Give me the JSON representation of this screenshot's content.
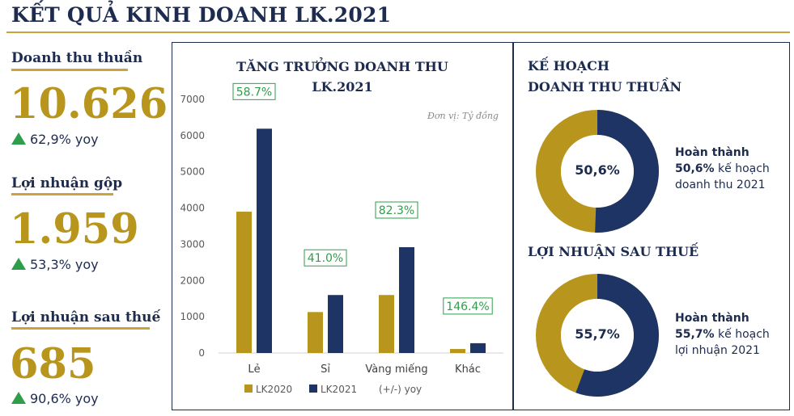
{
  "page": {
    "title": "KẾT QUẢ KINH DOANH LK.2021"
  },
  "colors": {
    "gold": "#b8951c",
    "navy": "#1d3464",
    "green": "#2e9e4a",
    "accent_rule": "#c9a43a"
  },
  "kpis": [
    {
      "label": "Doanh thu thuần",
      "value": "10.626",
      "yoy": "62,9% yoy",
      "icon": "up-triangle-icon"
    },
    {
      "label": "Lợi nhuận gộp",
      "value": "1.959",
      "yoy": "53,3% yoy",
      "icon": "up-triangle-icon"
    },
    {
      "label": "Lợi nhuận sau thuế",
      "value": "685",
      "yoy": "90,6% yoy",
      "icon": "up-triangle-icon"
    }
  ],
  "chart_data": [
    {
      "type": "bar",
      "title": "TĂNG TRƯỞNG DOANH THU LK.2021",
      "title_lines": [
        "TĂNG TRƯỞNG DOANH THU",
        "LK.2021"
      ],
      "unit_note": "Đơn vị: Tỷ đồng",
      "categories": [
        "Lẻ",
        "Sỉ",
        "Vàng miếng",
        "Khác"
      ],
      "series": [
        {
          "name": "LK2020",
          "values": [
            3900,
            1130,
            1600,
            110
          ]
        },
        {
          "name": "LK2021",
          "values": [
            6190,
            1600,
            2920,
            270
          ]
        }
      ],
      "growth_labels": [
        "58.7%",
        "41.0%",
        "82.3%",
        "146.4%"
      ],
      "growth_legend": "(+/-) yoy",
      "yticks": [
        "0",
        "1000",
        "2000",
        "3000",
        "4000",
        "5000",
        "6000",
        "7000"
      ],
      "ylim": [
        0,
        7000
      ],
      "legend_position": "bottom",
      "grid": false
    },
    {
      "type": "pie",
      "title": "KẾ HOẠCH DOANH THU THUẦN",
      "title_lines": [
        "KẾ HOẠCH",
        "DOANH THU THUẦN"
      ],
      "completed_pct": 50.6,
      "center_label": "50,6%",
      "desc_lines": [
        "Hoàn thành",
        "50,6%",
        "kế hoạch",
        "doanh thu 2021"
      ]
    },
    {
      "type": "pie",
      "title": "LỢI NHUẬN SAU THUẾ",
      "title_lines": [
        "LỢI NHUẬN SAU THUẾ"
      ],
      "completed_pct": 55.7,
      "center_label": "55,7%",
      "desc_lines": [
        "Hoàn thành",
        "55,7%",
        "kế hoạch",
        "lợi nhuận 2021"
      ]
    }
  ]
}
